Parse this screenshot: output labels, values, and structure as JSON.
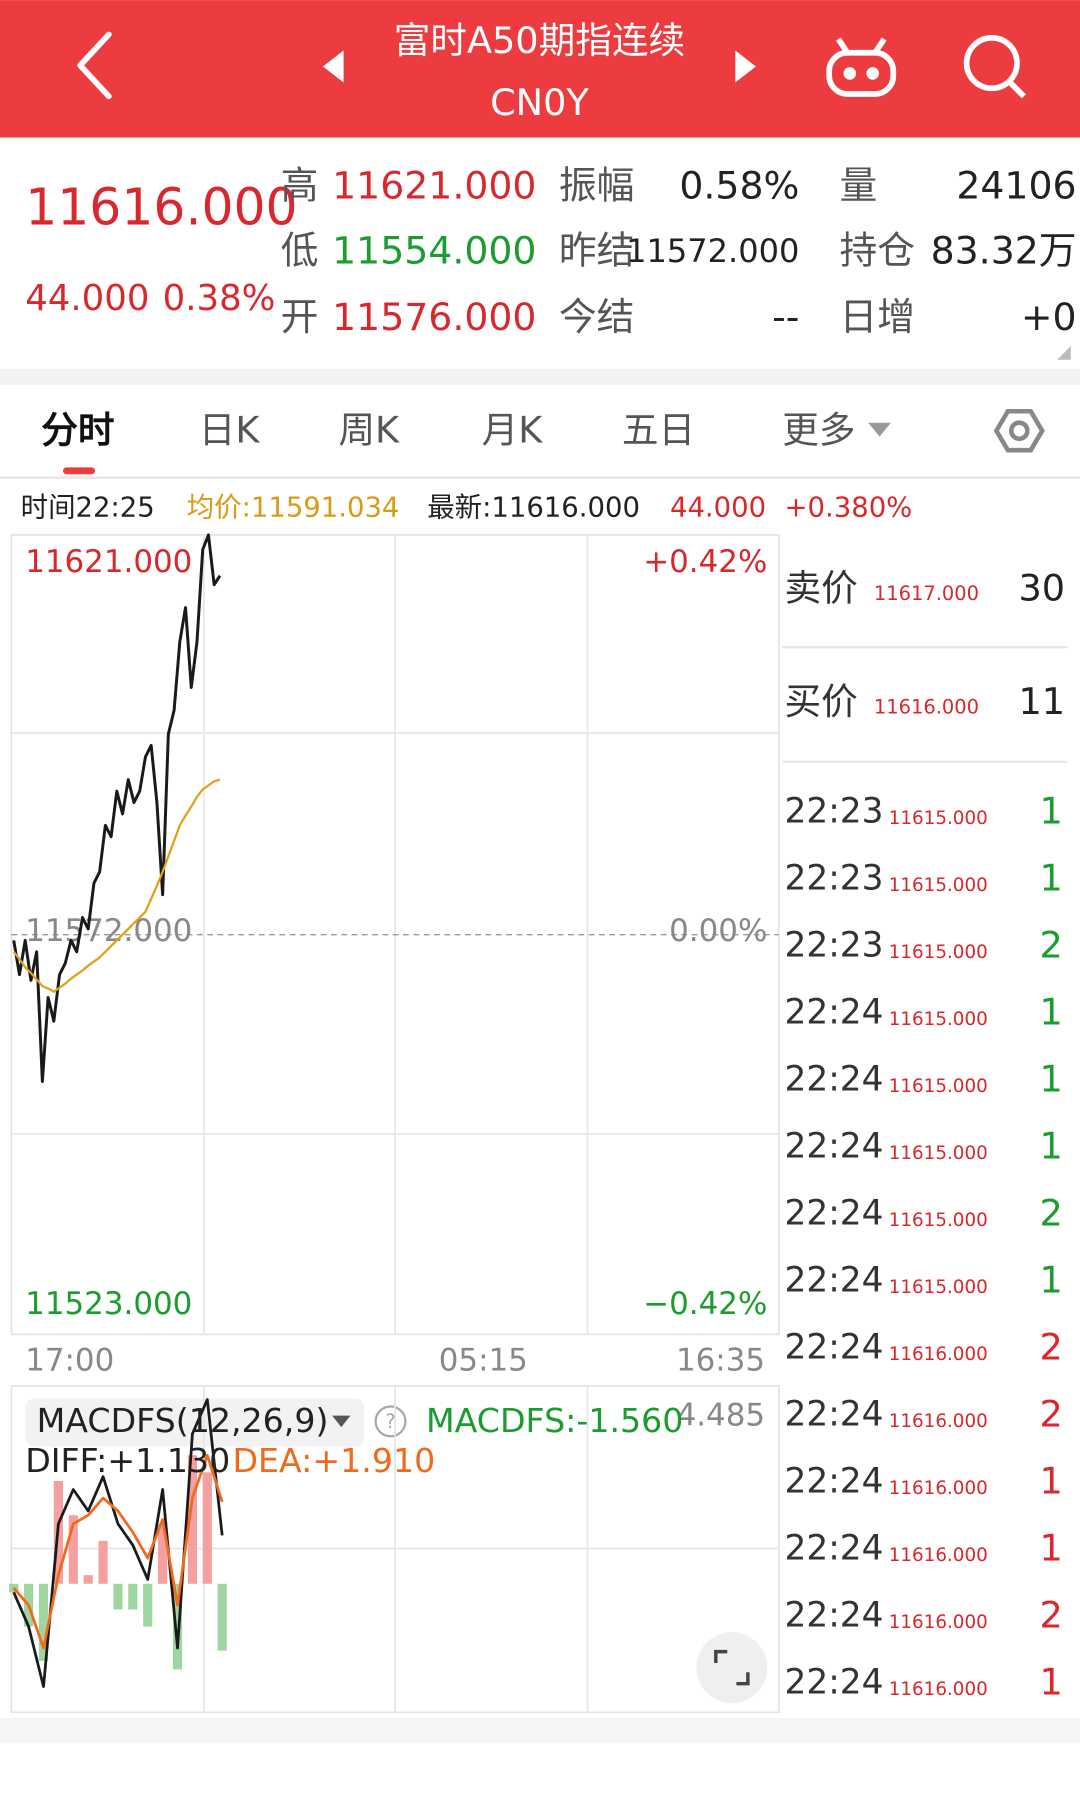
{
  "header": {
    "title": "富时A50期指连续",
    "code": "CN0Y"
  },
  "quote": {
    "price": "11616.000",
    "change": "44.000",
    "change_pct": "0.38%",
    "rows": [
      [
        {
          "label": "高",
          "value": "11621.000",
          "color": "#d9272e"
        },
        {
          "label": "振幅",
          "value": "0.58%",
          "color": "#222222"
        },
        {
          "label": "量",
          "value": "24106",
          "color": "#222222"
        }
      ],
      [
        {
          "label": "低",
          "value": "11554.000",
          "color": "#1a9c2f"
        },
        {
          "label": "昨结",
          "value": "11572.000",
          "color": "#222222"
        },
        {
          "label": "持仓",
          "value": "83.32万",
          "color": "#222222"
        }
      ],
      [
        {
          "label": "开",
          "value": "11576.000",
          "color": "#d9272e"
        },
        {
          "label": "今结",
          "value": "--",
          "color": "#222222"
        },
        {
          "label": "日增",
          "value": "+0",
          "color": "#222222"
        }
      ]
    ]
  },
  "tabs": [
    "分时",
    "日K",
    "周K",
    "月K",
    "五日",
    "更多"
  ],
  "info_bar": {
    "time": "时间22:25",
    "avg": "均价:11591.034",
    "latest": "最新:11616.000",
    "change": "44.000",
    "change_pct": "+0.380%"
  },
  "chart_data": [
    {
      "type": "line",
      "ylim": [
        11523,
        11621
      ],
      "yticks": [
        {
          "value": 11621,
          "label": "11621.000"
        },
        {
          "value": 11572,
          "label": "11572.000"
        },
        {
          "value": 11523,
          "label": "11523.000"
        }
      ],
      "y2lim": [
        -0.42,
        0.42
      ],
      "y2ticks": [
        {
          "value": 0.42,
          "label": "+0.42%"
        },
        {
          "value": 0,
          "label": "0.00%"
        },
        {
          "value": -0.42,
          "label": "−0.42%"
        }
      ],
      "xticks": [
        "17:00",
        "05:15",
        "16:35"
      ],
      "series": [
        {
          "name": "最新",
          "color": "#1a1a1a",
          "values": [
            11571.3,
            11567.1,
            11571.3,
            11566.4,
            11569.9,
            11554,
            11564.3,
            11561.4,
            11567.1,
            11568.5,
            11571.3,
            11569.9,
            11574.1,
            11572.7,
            11578.3,
            11579.7,
            11585.4,
            11584,
            11589.6,
            11586.8,
            11591,
            11588.2,
            11589.6,
            11593.8,
            11595.2,
            11588.2,
            11576.9,
            11596.6,
            11599.5,
            11607.9,
            11612.1,
            11602.3,
            11607.9,
            11619.2,
            11621,
            11614.9,
            11616
          ]
        },
        {
          "name": "均价",
          "color": "#e0a21a",
          "values": [
            11569.9,
            11569,
            11568,
            11567.3,
            11566.5,
            11565.7,
            11565.4,
            11565,
            11565.5,
            11566,
            11566.6,
            11567.1,
            11567.6,
            11568.2,
            11568.7,
            11569.2,
            11569.9,
            11570.6,
            11571.3,
            11572,
            11572.7,
            11573.4,
            11574.1,
            11574.8,
            11576.4,
            11578,
            11579.7,
            11581.6,
            11583.5,
            11585.4,
            11586.6,
            11587.7,
            11588.9,
            11589.8,
            11590.3,
            11590.8,
            11591
          ]
        }
      ]
    },
    {
      "type": "macd",
      "indicator": "MACDFS(12,26,9)",
      "macdfs_label": "MACDFS:-1.560",
      "diff_label": "DIFF:+1.130",
      "dea_label": "DEA:+1.910",
      "ylim": [
        -3,
        4.485
      ],
      "yticks": [
        4.485
      ],
      "series": [
        {
          "name": "DIFF",
          "color": "#1a1a1a",
          "values": [
            -0.2,
            -1.0,
            -2.4,
            1.4,
            2.2,
            1.7,
            2.5,
            1.4,
            0.9,
            0.1,
            2.2,
            -1.5,
            3.5,
            4.3,
            1.13
          ]
        },
        {
          "name": "DEA",
          "color": "#f06a1c",
          "values": [
            -0.1,
            -0.5,
            -1.5,
            0.2,
            1.4,
            1.6,
            2.0,
            1.7,
            1.2,
            0.6,
            1.5,
            -0.5,
            2.0,
            3.0,
            1.91
          ]
        },
        {
          "name": "MACDFS",
          "color": "#f4a0a0",
          "values": [
            -0.2,
            -1.0,
            -1.8,
            2.4,
            1.6,
            0.2,
            1.0,
            -0.6,
            -0.6,
            -1.0,
            1.4,
            -2.0,
            3.0,
            2.6,
            -1.56
          ]
        }
      ]
    }
  ],
  "order_book": {
    "sell": {
      "label": "卖价",
      "price": "11617.000",
      "qty": "30"
    },
    "buy": {
      "label": "买价",
      "price": "11616.000",
      "qty": "11"
    },
    "trades": [
      {
        "time": "22:23",
        "price": "11615.000",
        "qty": "1",
        "color": "#1a9c2f"
      },
      {
        "time": "22:23",
        "price": "11615.000",
        "qty": "1",
        "color": "#1a9c2f"
      },
      {
        "time": "22:23",
        "price": "11615.000",
        "qty": "2",
        "color": "#1a9c2f"
      },
      {
        "time": "22:24",
        "price": "11615.000",
        "qty": "1",
        "color": "#1a9c2f"
      },
      {
        "time": "22:24",
        "price": "11615.000",
        "qty": "1",
        "color": "#1a9c2f"
      },
      {
        "time": "22:24",
        "price": "11615.000",
        "qty": "1",
        "color": "#1a9c2f"
      },
      {
        "time": "22:24",
        "price": "11615.000",
        "qty": "2",
        "color": "#1a9c2f"
      },
      {
        "time": "22:24",
        "price": "11615.000",
        "qty": "1",
        "color": "#1a9c2f"
      },
      {
        "time": "22:24",
        "price": "11616.000",
        "qty": "2",
        "color": "#d9272e"
      },
      {
        "time": "22:24",
        "price": "11616.000",
        "qty": "2",
        "color": "#d9272e"
      },
      {
        "time": "22:24",
        "price": "11616.000",
        "qty": "1",
        "color": "#d9272e"
      },
      {
        "time": "22:24",
        "price": "11616.000",
        "qty": "1",
        "color": "#d9272e"
      },
      {
        "time": "22:24",
        "price": "11616.000",
        "qty": "2",
        "color": "#d9272e"
      },
      {
        "time": "22:24",
        "price": "11616.000",
        "qty": "1",
        "color": "#d9272e"
      }
    ]
  }
}
